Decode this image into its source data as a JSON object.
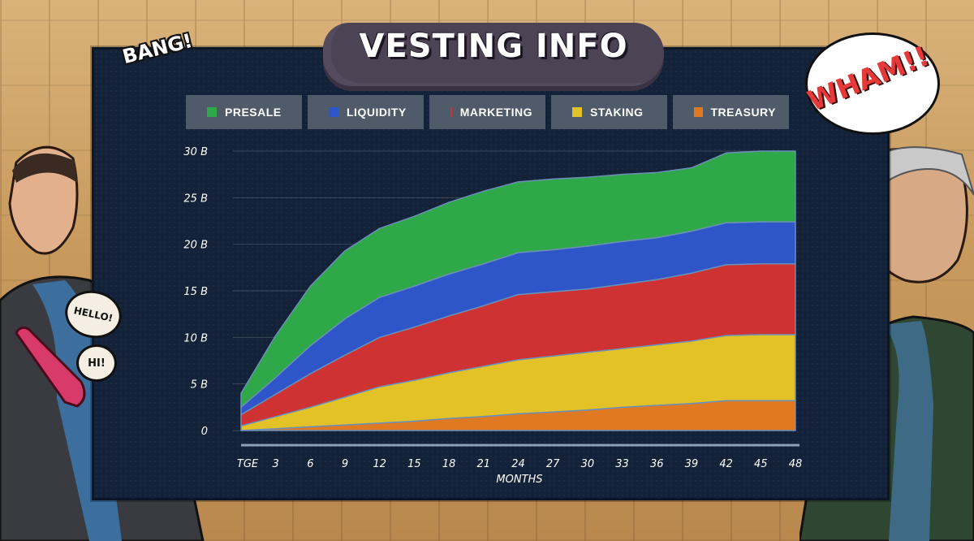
{
  "title": "VESTING INFO",
  "captions": {
    "bang": "BANG!",
    "wham": "WHAM!!",
    "hello": "HELLO!",
    "hi": "HI!"
  },
  "legend": [
    {
      "label": "PRESALE",
      "color": "#2fa84a"
    },
    {
      "label": "LIQUIDITY",
      "color": "#2e56c9"
    },
    {
      "label": "MARKETING",
      "color": "#cf3232"
    },
    {
      "label": "STAKING",
      "color": "#e3c227"
    },
    {
      "label": "TREASURY",
      "color": "#e07a22"
    }
  ],
  "chart_data": {
    "type": "area",
    "stacked": true,
    "title": "VESTING INFO",
    "xlabel": "MONTHS",
    "ylabel": "",
    "ylim": [
      0,
      30
    ],
    "yticks": [
      "0",
      "5 B",
      "10 B",
      "15 B",
      "20 B",
      "25 B",
      "30 B"
    ],
    "ytick_values": [
      0,
      5,
      10,
      15,
      20,
      25,
      30
    ],
    "categories": [
      "TGE",
      "3",
      "6",
      "9",
      "12",
      "15",
      "18",
      "21",
      "24",
      "27",
      "30",
      "33",
      "36",
      "39",
      "42",
      "45",
      "48"
    ],
    "x": [
      0,
      3,
      6,
      9,
      12,
      15,
      18,
      21,
      24,
      27,
      30,
      33,
      36,
      39,
      42,
      45,
      48
    ],
    "series": [
      {
        "name": "TREASURY",
        "color": "#e07a22",
        "values": [
          0,
          0.2,
          0.4,
          0.6,
          0.8,
          1.0,
          1.3,
          1.5,
          1.8,
          2.0,
          2.2,
          2.5,
          2.7,
          2.9,
          3.2,
          3.2,
          3.2
        ]
      },
      {
        "name": "STAKING",
        "color": "#e3c227",
        "values": [
          0.5,
          1.3,
          2.1,
          3.0,
          3.9,
          4.4,
          4.9,
          5.4,
          5.8,
          6.0,
          6.2,
          6.3,
          6.5,
          6.7,
          7.0,
          7.1,
          7.1
        ]
      },
      {
        "name": "MARKETING",
        "color": "#cf3232",
        "values": [
          1.2,
          2.4,
          3.6,
          4.5,
          5.3,
          5.7,
          6.1,
          6.5,
          7.0,
          6.9,
          6.8,
          6.9,
          7.0,
          7.3,
          7.6,
          7.6,
          7.6
        ]
      },
      {
        "name": "LIQUIDITY",
        "color": "#2e56c9",
        "values": [
          0.8,
          1.8,
          3.0,
          3.9,
          4.3,
          4.4,
          4.5,
          4.5,
          4.5,
          4.5,
          4.6,
          4.6,
          4.5,
          4.5,
          4.5,
          4.5,
          4.5
        ]
      },
      {
        "name": "PRESALE",
        "color": "#2fa84a",
        "values": [
          1.5,
          4.5,
          6.4,
          7.3,
          7.4,
          7.5,
          7.7,
          7.8,
          7.6,
          7.6,
          7.4,
          7.2,
          7.0,
          6.8,
          7.5,
          7.6,
          7.6
        ]
      }
    ]
  }
}
